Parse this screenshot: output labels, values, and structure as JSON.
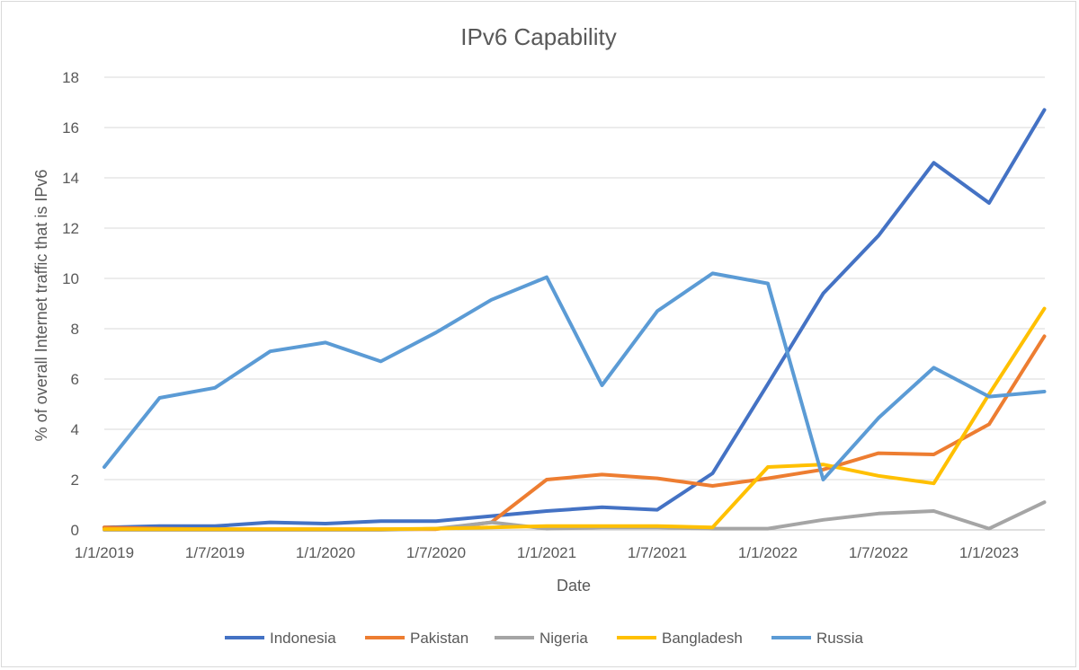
{
  "chart_data": {
    "type": "line",
    "title": "IPv6 Capability",
    "xlabel": "Date",
    "ylabel": "% of overall Internet traffic that is IPv6",
    "ylim": [
      0,
      18
    ],
    "yticks": [
      "0",
      "2",
      "4",
      "6",
      "8",
      "10",
      "12",
      "14",
      "16",
      "18"
    ],
    "xticks": [
      "1/1/2019",
      "1/7/2019",
      "1/1/2020",
      "1/7/2020",
      "1/1/2021",
      "1/7/2021",
      "1/1/2022",
      "1/7/2022",
      "1/1/2023"
    ],
    "grid": true,
    "legend_position": "bottom",
    "x": [
      "1/1/2019",
      "1/4/2019",
      "1/7/2019",
      "1/10/2019",
      "1/1/2020",
      "1/4/2020",
      "1/7/2020",
      "1/10/2020",
      "1/1/2021",
      "1/4/2021",
      "1/7/2021",
      "1/10/2021",
      "1/1/2022",
      "1/4/2022",
      "1/7/2022",
      "1/10/2022",
      "1/1/2023",
      "1/4/2023"
    ],
    "series": [
      {
        "name": "Indonesia",
        "color": "#4472c4",
        "values": [
          0.1,
          0.15,
          0.15,
          0.3,
          0.25,
          0.35,
          0.35,
          0.55,
          0.75,
          0.9,
          0.8,
          2.25,
          5.8,
          9.4,
          11.7,
          14.6,
          13.0,
          16.7
        ]
      },
      {
        "name": "Pakistan",
        "color": "#ed7d31",
        "values": [
          0.1,
          0.05,
          0.03,
          0.03,
          0.03,
          0.03,
          0.03,
          0.3,
          2.0,
          2.2,
          2.05,
          1.75,
          2.05,
          2.4,
          3.05,
          3.0,
          4.2,
          7.7
        ]
      },
      {
        "name": "Nigeria",
        "color": "#a5a5a5",
        "values": [
          0.0,
          0.0,
          0.0,
          0.0,
          0.0,
          0.0,
          0.05,
          0.3,
          0.05,
          0.1,
          0.1,
          0.05,
          0.05,
          0.4,
          0.65,
          0.75,
          0.05,
          1.1
        ]
      },
      {
        "name": "Bangladesh",
        "color": "#ffc000",
        "values": [
          0.03,
          0.03,
          0.03,
          0.03,
          0.03,
          0.03,
          0.05,
          0.1,
          0.15,
          0.15,
          0.15,
          0.1,
          2.5,
          2.6,
          2.15,
          1.85,
          5.4,
          8.8
        ]
      },
      {
        "name": "Russia",
        "color": "#5b9bd5",
        "values": [
          2.5,
          5.25,
          5.65,
          7.1,
          7.45,
          6.7,
          7.85,
          9.15,
          10.05,
          5.75,
          8.7,
          10.2,
          9.8,
          2.0,
          4.45,
          6.45,
          5.3,
          5.5
        ]
      }
    ]
  }
}
